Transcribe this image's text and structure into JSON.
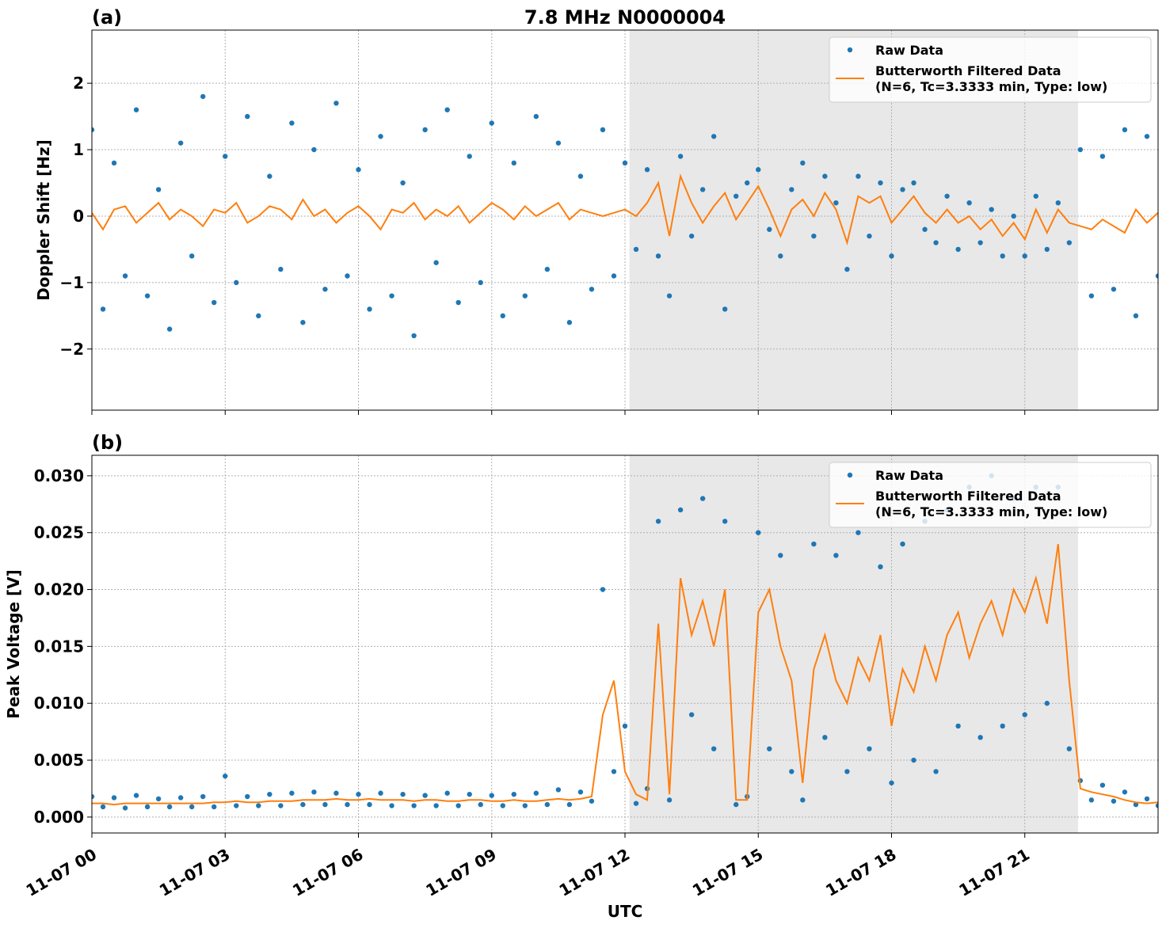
{
  "chart_data": [
    {
      "type": "scatter",
      "title": "7.8 MHz N0000004",
      "panel_label": "(a)",
      "ylabel": "Doppler Shift [Hz]",
      "x": [
        0,
        0.25,
        0.5,
        0.75,
        1,
        1.25,
        1.5,
        1.75,
        2,
        2.25,
        2.5,
        2.75,
        3,
        3.25,
        3.5,
        3.75,
        4,
        4.25,
        4.5,
        4.75,
        5,
        5.25,
        5.5,
        5.75,
        6,
        6.25,
        6.5,
        6.75,
        7,
        7.25,
        7.5,
        7.75,
        8,
        8.25,
        8.5,
        8.75,
        9,
        9.25,
        9.5,
        9.75,
        10,
        10.25,
        10.5,
        10.75,
        11,
        11.25,
        11.5,
        11.75,
        12,
        12.25,
        12.5,
        12.75,
        13,
        13.25,
        13.5,
        13.75,
        14,
        14.25,
        14.5,
        14.75,
        15,
        15.25,
        15.5,
        15.75,
        16,
        16.25,
        16.5,
        16.75,
        17,
        17.25,
        17.5,
        17.75,
        18,
        18.25,
        18.5,
        18.75,
        19,
        19.25,
        19.5,
        19.75,
        20,
        20.25,
        20.5,
        20.75,
        21,
        21.25,
        21.5,
        21.75,
        22,
        22.25,
        22.5,
        22.75,
        23,
        23.25,
        23.5,
        23.75,
        24
      ],
      "series": [
        {
          "name": "Raw Data",
          "type": "scatter",
          "color": "#1f77b4",
          "values": [
            1.3,
            -1.4,
            0.8,
            -0.9,
            1.6,
            -1.2,
            0.4,
            -1.7,
            1.1,
            -0.6,
            1.8,
            -1.3,
            0.9,
            -1.0,
            1.5,
            -1.5,
            0.6,
            -0.8,
            1.4,
            -1.6,
            1.0,
            -1.1,
            1.7,
            -0.9,
            0.7,
            -1.4,
            1.2,
            -1.2,
            0.5,
            -1.8,
            1.3,
            -0.7,
            1.6,
            -1.3,
            0.9,
            -1.0,
            1.4,
            -1.5,
            0.8,
            -1.2,
            1.5,
            -0.8,
            1.1,
            -1.6,
            0.6,
            -1.1,
            1.3,
            -0.9,
            0.8,
            -0.5,
            0.7,
            -0.6,
            -1.2,
            0.9,
            -0.3,
            0.4,
            1.2,
            -1.4,
            0.3,
            0.5,
            0.7,
            -0.2,
            -0.6,
            0.4,
            0.8,
            -0.3,
            0.6,
            0.2,
            -0.8,
            0.6,
            -0.3,
            0.5,
            -0.6,
            0.4,
            0.5,
            -0.2,
            -0.4,
            0.3,
            -0.5,
            0.2,
            -0.4,
            0.1,
            -0.6,
            0.0,
            -0.6,
            0.3,
            -0.5,
            0.2,
            -0.4,
            1.0,
            -1.2,
            0.9,
            -1.1,
            1.3,
            -1.5,
            1.2,
            -0.9
          ]
        },
        {
          "name": "Butterworth Filtered Data\n(N=6, Tc=3.3333 min, Type: low)",
          "type": "line",
          "color": "#ff7f0e",
          "values": [
            0.05,
            -0.2,
            0.1,
            0.15,
            -0.1,
            0.05,
            0.2,
            -0.05,
            0.1,
            0.0,
            -0.15,
            0.1,
            0.05,
            0.2,
            -0.1,
            0.0,
            0.15,
            0.1,
            -0.05,
            0.25,
            0.0,
            0.1,
            -0.1,
            0.05,
            0.15,
            0.0,
            -0.2,
            0.1,
            0.05,
            0.2,
            -0.05,
            0.1,
            0.0,
            0.15,
            -0.1,
            0.05,
            0.2,
            0.1,
            -0.05,
            0.15,
            0.0,
            0.1,
            0.2,
            -0.05,
            0.1,
            0.05,
            0.0,
            0.05,
            0.1,
            0.0,
            0.2,
            0.5,
            -0.3,
            0.6,
            0.2,
            -0.1,
            0.15,
            0.35,
            -0.05,
            0.2,
            0.45,
            0.1,
            -0.3,
            0.1,
            0.25,
            0.0,
            0.35,
            0.1,
            -0.4,
            0.3,
            0.2,
            0.3,
            -0.1,
            0.1,
            0.3,
            0.05,
            -0.1,
            0.1,
            -0.1,
            0.0,
            -0.2,
            -0.05,
            -0.3,
            -0.1,
            -0.35,
            0.1,
            -0.25,
            0.1,
            -0.1,
            -0.15,
            -0.2,
            -0.05,
            -0.15,
            -0.25,
            0.1,
            -0.1,
            0.05
          ]
        }
      ],
      "xlim": [
        0,
        24
      ],
      "xticks": [
        0,
        3,
        6,
        9,
        12,
        15,
        18,
        21
      ],
      "ylim": [
        -2.92,
        2.8
      ],
      "yticks": [
        {
          "value": -2,
          "label": "−2"
        },
        {
          "value": -1,
          "label": "−1"
        },
        0,
        1,
        2
      ],
      "shaded_xrange": [
        12.1,
        22.2
      ],
      "grid": true,
      "legend": "upper right"
    },
    {
      "type": "scatter",
      "panel_label": "(b)",
      "ylabel": "Peak Voltage [V]",
      "xlabel": "UTC",
      "x": [
        0,
        0.25,
        0.5,
        0.75,
        1,
        1.25,
        1.5,
        1.75,
        2,
        2.25,
        2.5,
        2.75,
        3,
        3.25,
        3.5,
        3.75,
        4,
        4.25,
        4.5,
        4.75,
        5,
        5.25,
        5.5,
        5.75,
        6,
        6.25,
        6.5,
        6.75,
        7,
        7.25,
        7.5,
        7.75,
        8,
        8.25,
        8.5,
        8.75,
        9,
        9.25,
        9.5,
        9.75,
        10,
        10.25,
        10.5,
        10.75,
        11,
        11.25,
        11.5,
        11.75,
        12,
        12.25,
        12.5,
        12.75,
        13,
        13.25,
        13.5,
        13.75,
        14,
        14.25,
        14.5,
        14.75,
        15,
        15.25,
        15.5,
        15.75,
        16,
        16.25,
        16.5,
        16.75,
        17,
        17.25,
        17.5,
        17.75,
        18,
        18.25,
        18.5,
        18.75,
        19,
        19.25,
        19.5,
        19.75,
        20,
        20.25,
        20.5,
        20.75,
        21,
        21.25,
        21.5,
        21.75,
        22,
        22.25,
        22.5,
        22.75,
        23,
        23.25,
        23.5,
        23.75,
        24
      ],
      "series": [
        {
          "name": "Raw Data",
          "type": "scatter",
          "color": "#1f77b4",
          "values": [
            0.0018,
            0.0009,
            0.0017,
            0.0008,
            0.0019,
            0.0009,
            0.0016,
            0.0009,
            0.0017,
            0.0009,
            0.0018,
            0.0009,
            0.0036,
            0.001,
            0.0018,
            0.001,
            0.002,
            0.001,
            0.0021,
            0.0011,
            0.0022,
            0.0011,
            0.0021,
            0.0011,
            0.002,
            0.0011,
            0.0021,
            0.001,
            0.002,
            0.001,
            0.0019,
            0.001,
            0.0021,
            0.001,
            0.002,
            0.0011,
            0.0019,
            0.001,
            0.002,
            0.001,
            0.0021,
            0.0011,
            0.0024,
            0.0011,
            0.0022,
            0.0014,
            0.02,
            0.004,
            0.008,
            0.0012,
            0.0025,
            0.026,
            0.0015,
            0.027,
            0.009,
            0.028,
            0.006,
            0.026,
            0.0011,
            0.0018,
            0.025,
            0.006,
            0.023,
            0.004,
            0.0015,
            0.024,
            0.007,
            0.023,
            0.004,
            0.025,
            0.006,
            0.022,
            0.003,
            0.024,
            0.005,
            0.026,
            0.004,
            0.027,
            0.008,
            0.029,
            0.007,
            0.03,
            0.008,
            0.028,
            0.009,
            0.029,
            0.01,
            0.029,
            0.006,
            0.0032,
            0.0015,
            0.0028,
            0.0014,
            0.0022,
            0.0011,
            0.0016,
            0.001
          ]
        },
        {
          "name": "Butterworth Filtered Data\n(N=6, Tc=3.3333 min, Type: low)",
          "type": "line",
          "color": "#ff7f0e",
          "values": [
            0.0012,
            0.0012,
            0.0011,
            0.0012,
            0.0012,
            0.0012,
            0.0012,
            0.0012,
            0.0012,
            0.0012,
            0.0012,
            0.0013,
            0.0013,
            0.0014,
            0.0013,
            0.0013,
            0.0014,
            0.0014,
            0.0014,
            0.0015,
            0.0015,
            0.0015,
            0.0016,
            0.0015,
            0.0015,
            0.0016,
            0.0015,
            0.0015,
            0.0015,
            0.0014,
            0.0015,
            0.0015,
            0.0014,
            0.0014,
            0.0015,
            0.0015,
            0.0014,
            0.0014,
            0.0015,
            0.0014,
            0.0014,
            0.0015,
            0.0016,
            0.0015,
            0.0016,
            0.0018,
            0.009,
            0.012,
            0.004,
            0.002,
            0.0015,
            0.017,
            0.002,
            0.021,
            0.016,
            0.019,
            0.015,
            0.02,
            0.0015,
            0.0015,
            0.018,
            0.02,
            0.015,
            0.012,
            0.003,
            0.013,
            0.016,
            0.012,
            0.01,
            0.014,
            0.012,
            0.016,
            0.008,
            0.013,
            0.011,
            0.015,
            0.012,
            0.016,
            0.018,
            0.014,
            0.017,
            0.019,
            0.016,
            0.02,
            0.018,
            0.021,
            0.017,
            0.024,
            0.012,
            0.0025,
            0.0022,
            0.002,
            0.0018,
            0.0015,
            0.0013,
            0.0012,
            0.0013
          ]
        }
      ],
      "xlim": [
        0,
        24
      ],
      "xticks": [
        {
          "value": 0,
          "label": "11-07 00"
        },
        {
          "value": 3,
          "label": "11-07 03"
        },
        {
          "value": 6,
          "label": "11-07 06"
        },
        {
          "value": 9,
          "label": "11-07 09"
        },
        {
          "value": 12,
          "label": "11-07 12"
        },
        {
          "value": 15,
          "label": "11-07 15"
        },
        {
          "value": 18,
          "label": "11-07 18"
        },
        {
          "value": 21,
          "label": "11-07 21"
        }
      ],
      "ylim": [
        -0.0014,
        0.0318
      ],
      "yticks": [
        {
          "value": 0,
          "label": "0.000"
        },
        {
          "value": 0.005,
          "label": "0.005"
        },
        {
          "value": 0.01,
          "label": "0.010"
        },
        {
          "value": 0.015,
          "label": "0.015"
        },
        {
          "value": 0.02,
          "label": "0.020"
        },
        {
          "value": 0.025,
          "label": "0.025"
        },
        {
          "value": 0.03,
          "label": "0.030"
        }
      ],
      "shaded_xrange": [
        12.1,
        22.2
      ],
      "grid": true,
      "legend": "upper right"
    }
  ]
}
